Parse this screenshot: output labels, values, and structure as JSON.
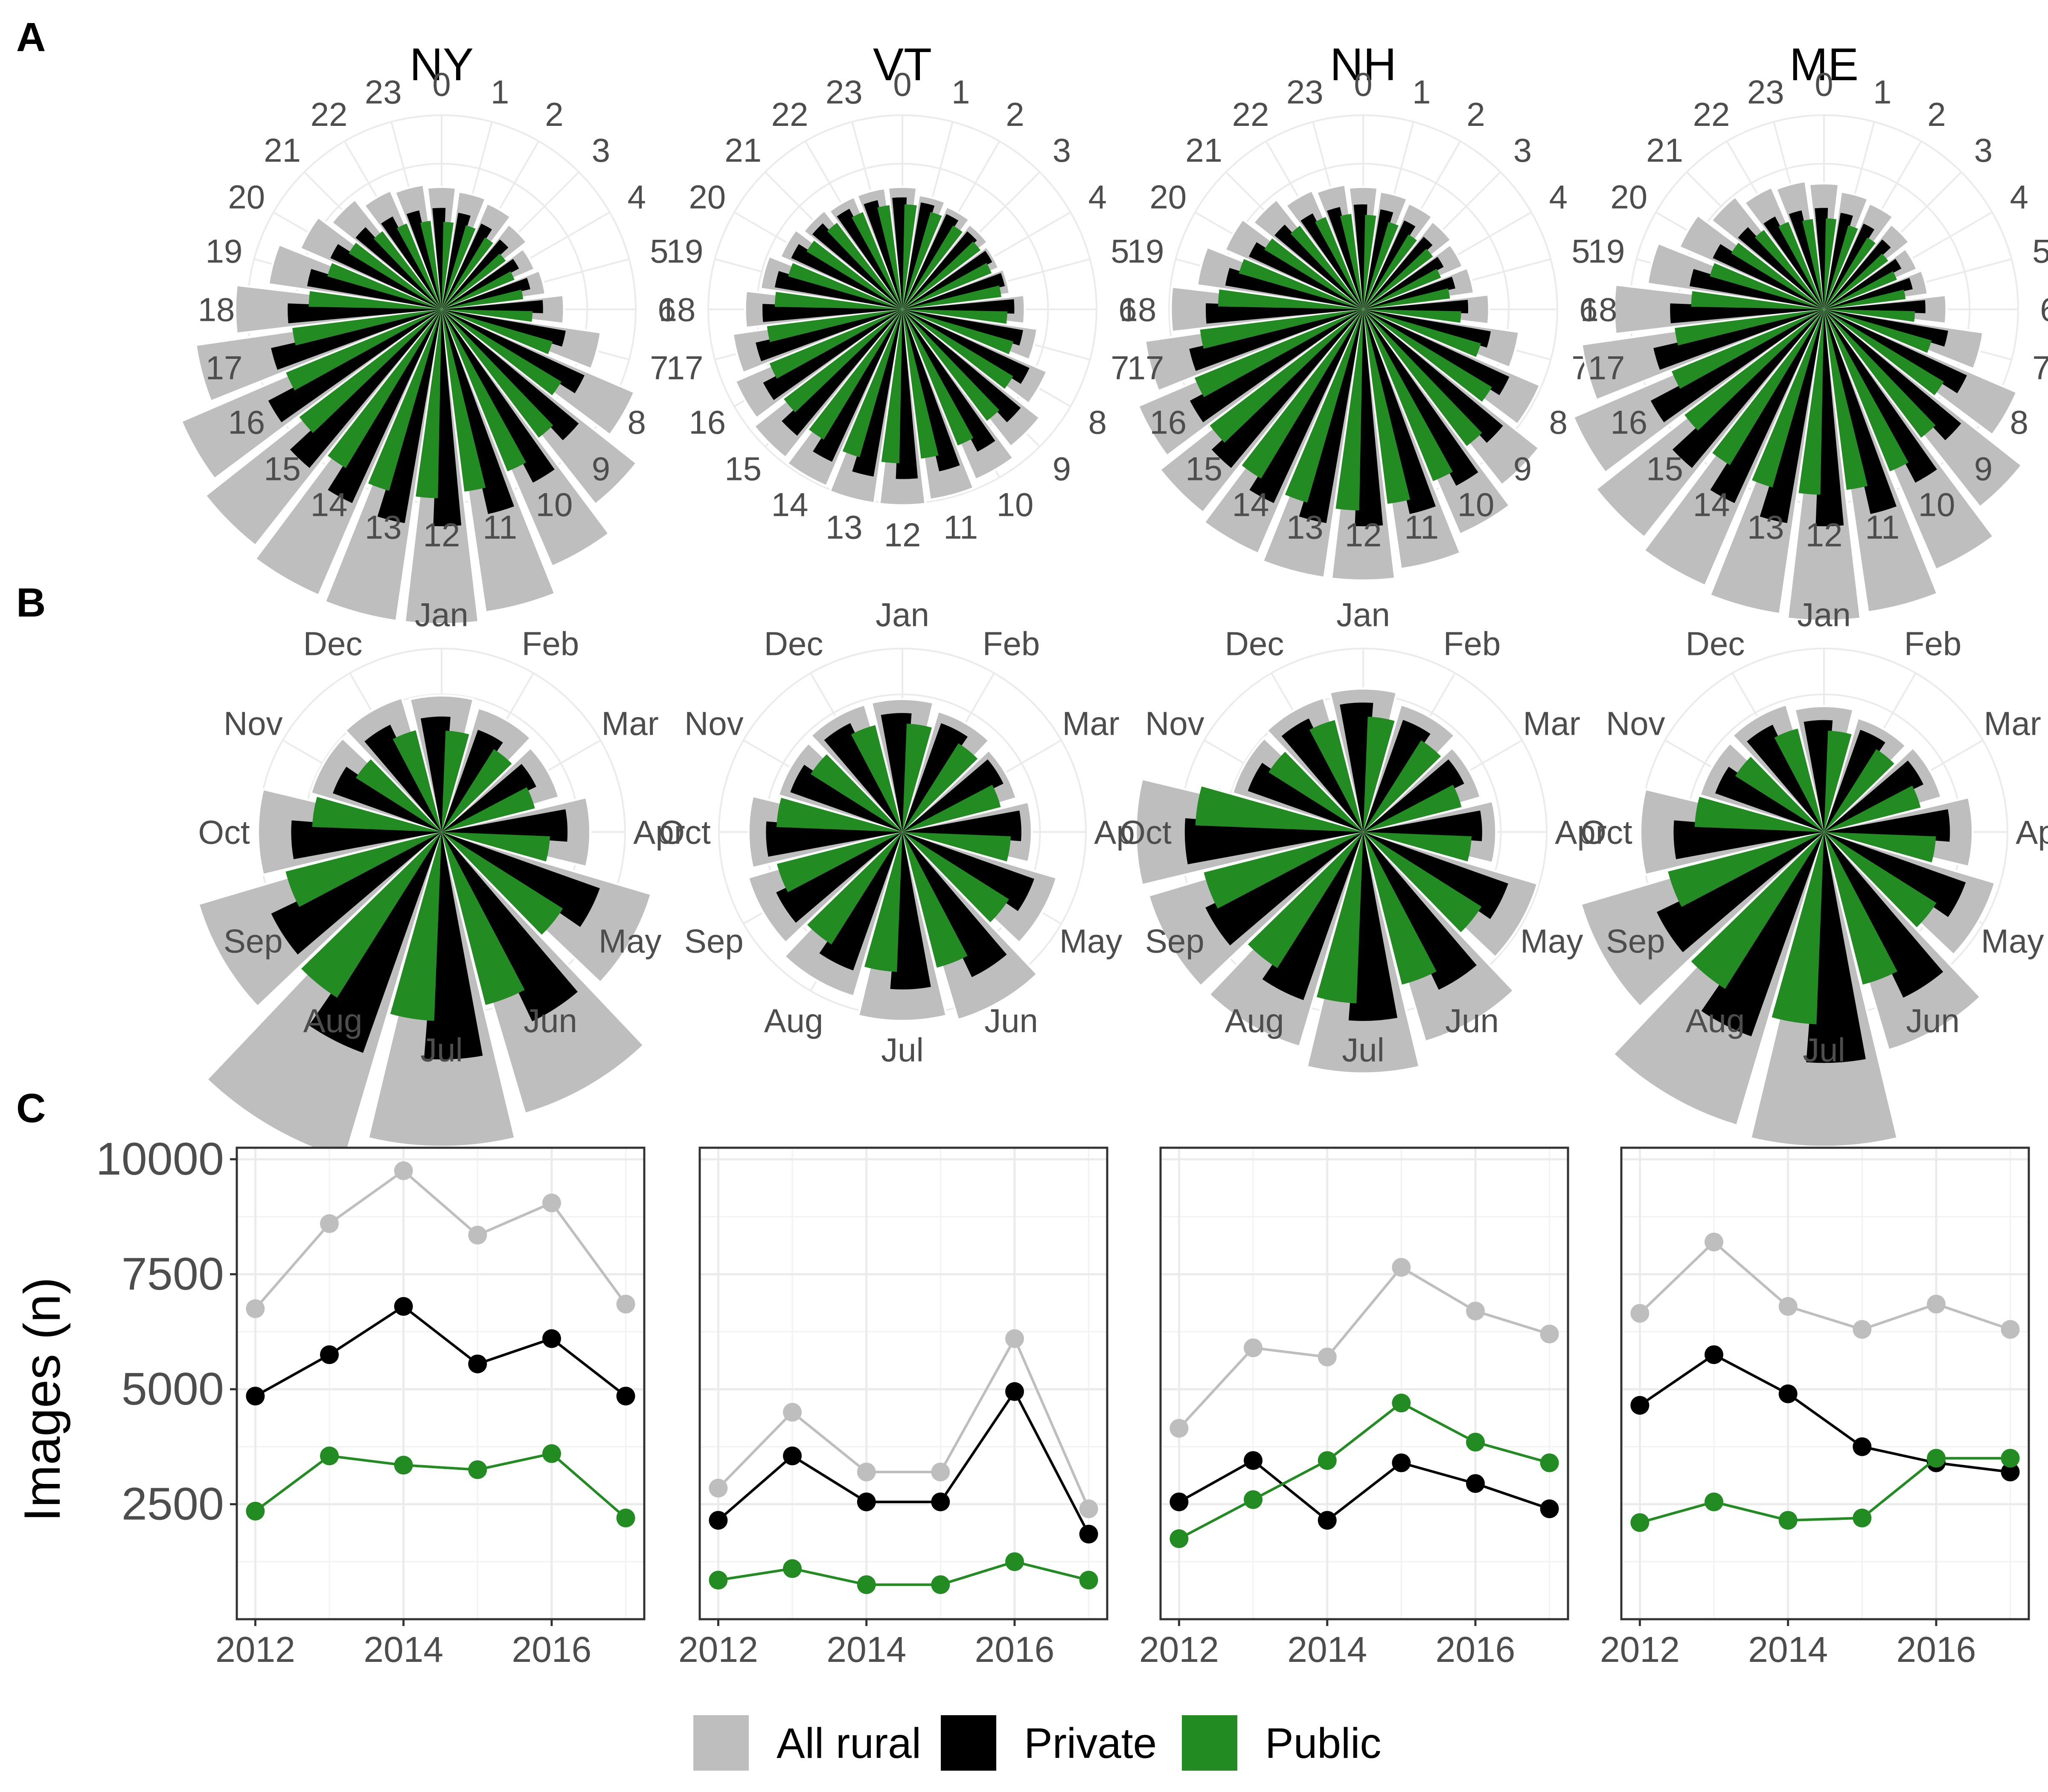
{
  "panel_labels": [
    "A",
    "B",
    "C"
  ],
  "states": [
    "NY",
    "VT",
    "NH",
    "ME"
  ],
  "legend": [
    {
      "label": "All rural",
      "color": "#bebebe"
    },
    {
      "label": "Private",
      "color": "#000000"
    },
    {
      "label": "Public",
      "color": "#228b22"
    }
  ],
  "chart_data": [
    {
      "type": "bar",
      "polar": true,
      "panel": "A",
      "categories": [
        "0",
        "1",
        "2",
        "3",
        "4",
        "5",
        "6",
        "7",
        "8",
        "9",
        "10",
        "11",
        "12",
        "13",
        "14",
        "15",
        "16",
        "17",
        "18",
        "19",
        "20",
        "21",
        "22",
        "23"
      ],
      "facets": [
        {
          "title": "NY",
          "series": [
            {
              "name": "All rural",
              "values": [
                0.7,
                0.68,
                0.66,
                0.62,
                0.58,
                0.6,
                0.7,
                0.92,
                1.2,
                1.42,
                1.6,
                1.75,
                1.8,
                1.8,
                1.78,
                1.72,
                1.62,
                1.42,
                1.18,
                1.0,
                0.88,
                0.8,
                0.74,
                0.72
              ]
            },
            {
              "name": "Private",
              "values": [
                0.58,
                0.56,
                0.54,
                0.52,
                0.5,
                0.52,
                0.58,
                0.72,
                0.9,
                1.02,
                1.12,
                1.2,
                1.24,
                1.24,
                1.22,
                1.18,
                1.12,
                1.0,
                0.88,
                0.78,
                0.7,
                0.64,
                0.6,
                0.58
              ]
            },
            {
              "name": "Public",
              "values": [
                0.5,
                0.5,
                0.48,
                0.46,
                0.45,
                0.47,
                0.52,
                0.66,
                0.8,
                0.92,
                1.0,
                1.05,
                1.08,
                1.08,
                1.06,
                1.02,
                0.96,
                0.86,
                0.76,
                0.68,
                0.62,
                0.56,
                0.53,
                0.51
              ]
            }
          ]
        },
        {
          "title": "VT",
          "series": [
            {
              "name": "All rural",
              "values": [
                0.7,
                0.66,
                0.64,
                0.62,
                0.6,
                0.62,
                0.7,
                0.78,
                0.9,
                1.0,
                1.06,
                1.1,
                1.12,
                1.12,
                1.1,
                1.08,
                1.04,
                0.98,
                0.9,
                0.82,
                0.76,
                0.72,
                0.7,
                0.7
              ]
            },
            {
              "name": "Private",
              "values": [
                0.64,
                0.62,
                0.6,
                0.58,
                0.58,
                0.6,
                0.64,
                0.7,
                0.8,
                0.88,
                0.92,
                0.95,
                0.97,
                0.97,
                0.96,
                0.94,
                0.9,
                0.86,
                0.8,
                0.74,
                0.7,
                0.67,
                0.65,
                0.64
              ]
            },
            {
              "name": "Public",
              "values": [
                0.6,
                0.58,
                0.56,
                0.56,
                0.55,
                0.57,
                0.6,
                0.66,
                0.74,
                0.8,
                0.84,
                0.86,
                0.88,
                0.88,
                0.87,
                0.85,
                0.82,
                0.78,
                0.73,
                0.68,
                0.64,
                0.62,
                0.6,
                0.6
              ]
            }
          ]
        },
        {
          "title": "NH",
          "series": [
            {
              "name": "All rural",
              "values": [
                0.7,
                0.68,
                0.66,
                0.64,
                0.62,
                0.64,
                0.72,
                0.9,
                1.1,
                1.28,
                1.4,
                1.5,
                1.55,
                1.55,
                1.52,
                1.48,
                1.4,
                1.26,
                1.1,
                0.96,
                0.86,
                0.8,
                0.74,
                0.72
              ]
            },
            {
              "name": "Private",
              "values": [
                0.6,
                0.58,
                0.56,
                0.54,
                0.52,
                0.54,
                0.6,
                0.74,
                0.92,
                1.04,
                1.14,
                1.2,
                1.24,
                1.24,
                1.22,
                1.18,
                1.12,
                1.02,
                0.9,
                0.8,
                0.72,
                0.66,
                0.62,
                0.6
              ]
            },
            {
              "name": "Public",
              "values": [
                0.54,
                0.52,
                0.5,
                0.5,
                0.48,
                0.5,
                0.56,
                0.7,
                0.86,
                0.98,
                1.06,
                1.12,
                1.15,
                1.15,
                1.13,
                1.1,
                1.04,
                0.94,
                0.83,
                0.74,
                0.66,
                0.6,
                0.57,
                0.55
              ]
            }
          ]
        },
        {
          "title": "ME",
          "series": [
            {
              "name": "All rural",
              "values": [
                0.72,
                0.68,
                0.66,
                0.62,
                0.58,
                0.6,
                0.7,
                0.92,
                1.2,
                1.44,
                1.62,
                1.75,
                1.78,
                1.76,
                1.72,
                1.66,
                1.56,
                1.4,
                1.2,
                1.02,
                0.9,
                0.82,
                0.76,
                0.74
              ]
            },
            {
              "name": "Private",
              "values": [
                0.58,
                0.56,
                0.54,
                0.52,
                0.5,
                0.52,
                0.58,
                0.72,
                0.9,
                1.02,
                1.12,
                1.2,
                1.24,
                1.24,
                1.22,
                1.18,
                1.12,
                1.0,
                0.88,
                0.78,
                0.7,
                0.64,
                0.6,
                0.58
              ]
            },
            {
              "name": "Public",
              "values": [
                0.52,
                0.5,
                0.48,
                0.46,
                0.45,
                0.47,
                0.52,
                0.64,
                0.8,
                0.92,
                1.0,
                1.04,
                1.06,
                1.06,
                1.04,
                1.0,
                0.94,
                0.86,
                0.76,
                0.68,
                0.62,
                0.57,
                0.54,
                0.52
              ]
            }
          ]
        }
      ]
    },
    {
      "type": "bar",
      "polar": true,
      "panel": "B",
      "categories": [
        "Jan",
        "Feb",
        "Mar",
        "Apr",
        "May",
        "Jun",
        "Jul",
        "Aug",
        "Sep",
        "Oct",
        "Nov",
        "Dec"
      ],
      "facets": [
        {
          "title": "NY",
          "series": [
            {
              "name": "All rural",
              "values": [
                0.78,
                0.74,
                0.7,
                0.85,
                1.25,
                1.68,
                1.8,
                1.95,
                1.45,
                1.05,
                0.78,
                0.8
              ]
            },
            {
              "name": "Private",
              "values": [
                0.66,
                0.62,
                0.6,
                0.72,
                0.96,
                1.2,
                1.3,
                1.34,
                1.08,
                0.86,
                0.66,
                0.68
              ]
            },
            {
              "name": "Public",
              "values": [
                0.58,
                0.56,
                0.55,
                0.62,
                0.82,
                1.02,
                1.08,
                1.12,
                0.92,
                0.74,
                0.58,
                0.6
              ]
            }
          ]
        },
        {
          "title": "VT",
          "series": [
            {
              "name": "All rural",
              "values": [
                0.76,
                0.72,
                0.68,
                0.74,
                0.92,
                1.12,
                1.08,
                0.98,
                0.92,
                0.88,
                0.74,
                0.76
              ]
            },
            {
              "name": "Private",
              "values": [
                0.68,
                0.66,
                0.64,
                0.68,
                0.8,
                0.92,
                0.9,
                0.84,
                0.8,
                0.78,
                0.68,
                0.69
              ]
            },
            {
              "name": "Public",
              "values": [
                0.62,
                0.6,
                0.58,
                0.62,
                0.72,
                0.8,
                0.8,
                0.76,
                0.74,
                0.72,
                0.62,
                0.63
              ]
            }
          ]
        },
        {
          "title": "NH",
          "series": [
            {
              "name": "All rural",
              "values": [
                0.82,
                0.76,
                0.7,
                0.76,
                1.04,
                1.25,
                1.38,
                1.28,
                1.28,
                1.3,
                0.78,
                0.8
              ]
            },
            {
              "name": "Private",
              "values": [
                0.74,
                0.68,
                0.64,
                0.68,
                0.88,
                1.0,
                1.08,
                1.02,
                1.0,
                1.02,
                0.7,
                0.72
              ]
            },
            {
              "name": "Public",
              "values": [
                0.66,
                0.62,
                0.58,
                0.62,
                0.8,
                0.9,
                0.98,
                0.92,
                0.94,
                0.96,
                0.64,
                0.66
              ]
            }
          ]
        },
        {
          "title": "ME",
          "series": [
            {
              "name": "All rural",
              "values": [
                0.72,
                0.68,
                0.7,
                0.85,
                1.02,
                1.3,
                1.8,
                1.75,
                1.45,
                1.05,
                0.74,
                0.76
              ]
            },
            {
              "name": "Private",
              "values": [
                0.64,
                0.62,
                0.63,
                0.72,
                0.86,
                1.05,
                1.32,
                1.24,
                1.06,
                0.86,
                0.66,
                0.68
              ]
            },
            {
              "name": "Public",
              "values": [
                0.58,
                0.56,
                0.57,
                0.64,
                0.76,
                0.9,
                1.1,
                1.06,
                0.92,
                0.74,
                0.6,
                0.61
              ]
            }
          ]
        }
      ]
    },
    {
      "type": "line",
      "panel": "C",
      "x": [
        2012,
        2013,
        2014,
        2015,
        2016,
        2017
      ],
      "xticks": [
        "2012",
        "2014",
        "2016"
      ],
      "ylabel": "Images (n)",
      "yticks": [
        "10000",
        "7500",
        "5000",
        "2500"
      ],
      "ylim": [
        0,
        10250
      ],
      "facets": [
        {
          "title": "NY",
          "series": [
            {
              "name": "All rural",
              "values": [
                6750,
                8600,
                9750,
                8350,
                9050,
                6850
              ]
            },
            {
              "name": "Private",
              "values": [
                4850,
                5750,
                6800,
                5550,
                6100,
                4850
              ]
            },
            {
              "name": "Public",
              "values": [
                2350,
                3550,
                3350,
                3250,
                3600,
                2200
              ]
            }
          ]
        },
        {
          "title": "VT",
          "series": [
            {
              "name": "All rural",
              "values": [
                2850,
                4500,
                3200,
                3200,
                6100,
                2400
              ]
            },
            {
              "name": "Private",
              "values": [
                2150,
                3550,
                2550,
                2550,
                4950,
                1850
              ]
            },
            {
              "name": "Public",
              "values": [
                850,
                1100,
                750,
                750,
                1250,
                850
              ]
            }
          ]
        },
        {
          "title": "NH",
          "series": [
            {
              "name": "All rural",
              "values": [
                4150,
                5900,
                5700,
                7650,
                6700,
                6200
              ]
            },
            {
              "name": "Private",
              "values": [
                2550,
                3450,
                2150,
                3400,
                2950,
                2400
              ]
            },
            {
              "name": "Public",
              "values": [
                1750,
                2600,
                3450,
                4700,
                3850,
                3400
              ]
            }
          ]
        },
        {
          "title": "ME",
          "series": [
            {
              "name": "All rural",
              "values": [
                6650,
                8200,
                6800,
                6300,
                6850,
                6300
              ]
            },
            {
              "name": "Private",
              "values": [
                4650,
                5750,
                4900,
                3750,
                3400,
                3200
              ]
            },
            {
              "name": "Public",
              "values": [
                2100,
                2550,
                2150,
                2200,
                3500,
                3500
              ]
            }
          ]
        }
      ]
    }
  ]
}
